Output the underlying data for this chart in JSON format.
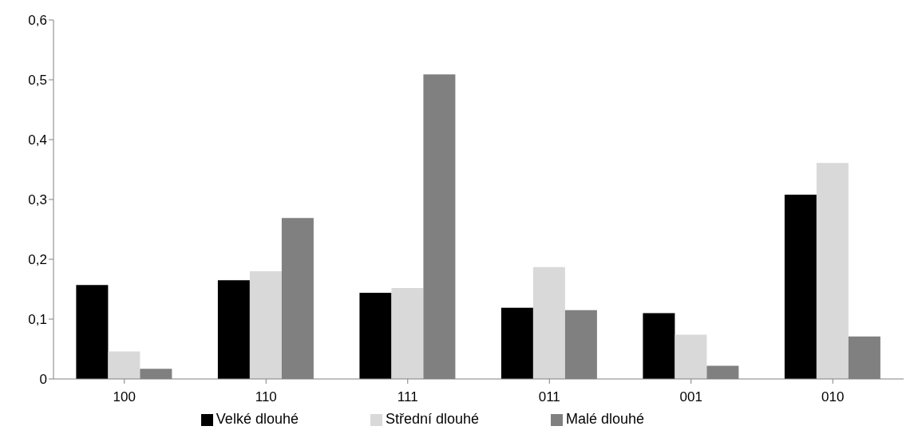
{
  "chart_data": {
    "type": "bar",
    "categories": [
      "100",
      "110",
      "111",
      "011",
      "001",
      "010"
    ],
    "series": [
      {
        "name": "Velké dlouhé",
        "color": "#000000",
        "values": [
          0.157,
          0.165,
          0.144,
          0.119,
          0.11,
          0.308
        ]
      },
      {
        "name": "Střední dlouhé",
        "color": "#d9d9d9",
        "values": [
          0.046,
          0.18,
          0.152,
          0.187,
          0.074,
          0.361
        ]
      },
      {
        "name": "Malé dlouhé",
        "color": "#808080",
        "values": [
          0.017,
          0.269,
          0.509,
          0.115,
          0.022,
          0.071
        ]
      }
    ],
    "ylim": [
      0,
      0.6
    ],
    "yticks": [
      0,
      {
        "value": 0.1,
        "label": "0,1"
      },
      {
        "value": 0.2,
        "label": "0,2"
      },
      {
        "value": 0.3,
        "label": "0,3"
      },
      {
        "value": 0.4,
        "label": "0,4"
      },
      {
        "value": 0.5,
        "label": "0,5"
      },
      {
        "value": 0.6,
        "label": "0,6"
      }
    ],
    "grid": false,
    "legend": "bottom"
  }
}
